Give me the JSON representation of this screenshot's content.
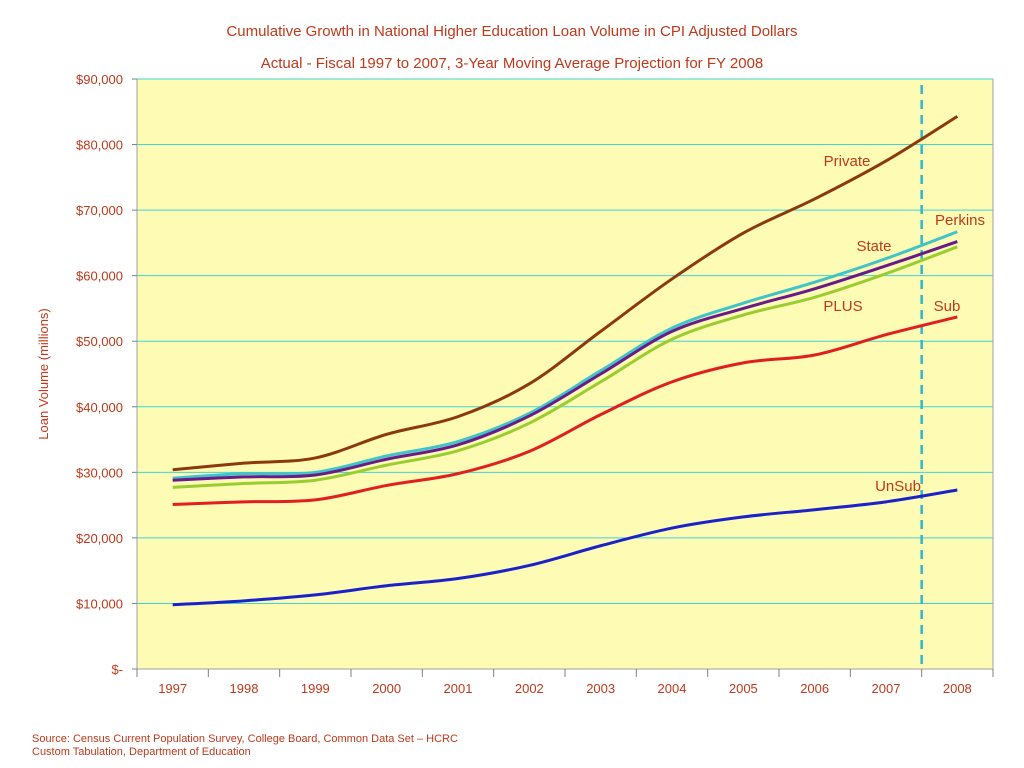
{
  "chart_data": {
    "type": "line",
    "title": "Cumulative Growth in National Higher Education Loan Volume in CPI Adjusted Dollars",
    "subtitle": "Actual - Fiscal 1997 to 2007, 3-Year Moving Average Projection for FY 2008",
    "xlabel": "",
    "ylabel": "Loan Volume (millions)",
    "ylim": [
      0,
      90000
    ],
    "yticks": [
      0,
      10000,
      20000,
      30000,
      40000,
      50000,
      60000,
      70000,
      80000,
      90000
    ],
    "ytick_labels": [
      "$-",
      "$10,000",
      "$20,000",
      "$30,000",
      "$40,000",
      "$50,000",
      "$60,000",
      "$70,000",
      "$80,000",
      "$90,000"
    ],
    "categories": [
      "1997",
      "1998",
      "1999",
      "2000",
      "2001",
      "2002",
      "2003",
      "2004",
      "2005",
      "2006",
      "2007",
      "2008"
    ],
    "grid": true,
    "projection_divider_after": "2007",
    "series": [
      {
        "name": "Private",
        "color": "#8b3a0f",
        "values": [
          30400,
          31400,
          32200,
          35800,
          38500,
          43500,
          51500,
          59500,
          66500,
          71700,
          77500,
          84300
        ]
      },
      {
        "name": "Perkins",
        "color": "#40c4c8",
        "values": [
          29100,
          29800,
          30000,
          32500,
          34700,
          39000,
          45500,
          52000,
          55800,
          59000,
          62600,
          66700
        ]
      },
      {
        "name": "State",
        "color": "#6a1b8a",
        "values": [
          28800,
          29300,
          29600,
          32000,
          34200,
          38600,
          45000,
          51500,
          55000,
          58000,
          61500,
          65200
        ]
      },
      {
        "name": "PLUS",
        "color": "#9acd32",
        "values": [
          27700,
          28300,
          28800,
          31100,
          33300,
          37500,
          43800,
          50300,
          54000,
          56700,
          60300,
          64400
        ]
      },
      {
        "name": "Sub",
        "color": "#e02020",
        "values": [
          25100,
          25500,
          25800,
          28000,
          29800,
          33200,
          38800,
          43800,
          46700,
          47900,
          51000,
          53700
        ]
      },
      {
        "name": "UnSub",
        "color": "#1a22c8",
        "values": [
          9800,
          10400,
          11300,
          12700,
          13800,
          15800,
          18800,
          21500,
          23200,
          24300,
          25500,
          27300
        ]
      }
    ],
    "labels": [
      {
        "text": "Private",
        "series": "Private"
      },
      {
        "text": "Perkins",
        "series": "Perkins"
      },
      {
        "text": "State",
        "series": "State"
      },
      {
        "text": "PLUS",
        "series": "PLUS"
      },
      {
        "text": "Sub",
        "series": "Sub"
      },
      {
        "text": "UnSub",
        "series": "UnSub"
      }
    ]
  },
  "colors": {
    "plot_bg": "#fdfbb4",
    "grid": "#3fd6d8",
    "text": "#c0391b",
    "divider": "#2fb8cc"
  },
  "source_line1": "Source: Census Current Population Survey, College Board, Common Data Set – HCRC",
  "source_line2": "Custom Tabulation, Department of Education"
}
